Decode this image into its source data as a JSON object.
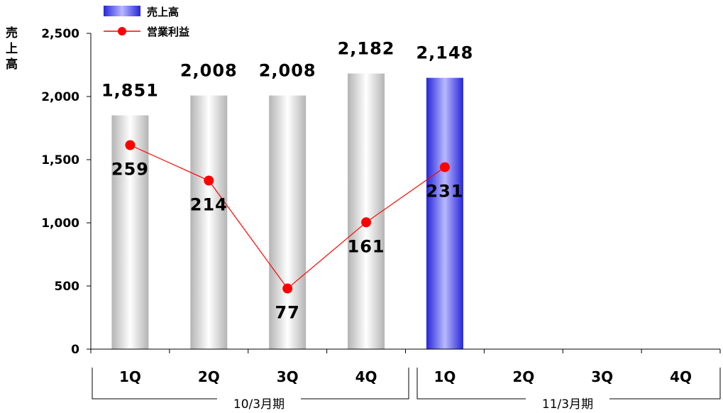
{
  "chart_data": {
    "type": "bar",
    "ylabel": "売上高",
    "ylim": [
      0,
      2500
    ],
    "yticks": [
      0,
      500,
      1000,
      1500,
      2000,
      2500
    ],
    "ytick_labels": [
      "0",
      "500",
      "1,000",
      "1,500",
      "2,000",
      "2,500"
    ],
    "categories": [
      "1Q",
      "2Q",
      "3Q",
      "4Q",
      "1Q",
      "2Q",
      "3Q",
      "4Q"
    ],
    "groups": [
      {
        "label": "10/3月期",
        "categories": [
          "1Q",
          "2Q",
          "3Q",
          "4Q"
        ]
      },
      {
        "label": "11/3月期",
        "categories": [
          "1Q",
          "2Q",
          "3Q",
          "4Q"
        ]
      }
    ],
    "legend_position": "top-left",
    "series": [
      {
        "name": "売上高",
        "type": "bar",
        "values": [
          1851,
          2008,
          2008,
          2182,
          2148,
          null,
          null,
          null
        ],
        "labels": [
          "1,851",
          "2,008",
          "2,008",
          "2,182",
          "2,148",
          "",
          "",
          ""
        ],
        "colors": [
          "#c8c8c8",
          "#c8c8c8",
          "#c8c8c8",
          "#c8c8c8",
          "#3333dd",
          null,
          null,
          null
        ]
      },
      {
        "name": "営業利益",
        "type": "line",
        "color": "#ff0000",
        "values": [
          259,
          214,
          77,
          161,
          231,
          null,
          null,
          null
        ],
        "labels": [
          "259",
          "214",
          "77",
          "161",
          "231",
          "",
          "",
          ""
        ]
      }
    ]
  }
}
